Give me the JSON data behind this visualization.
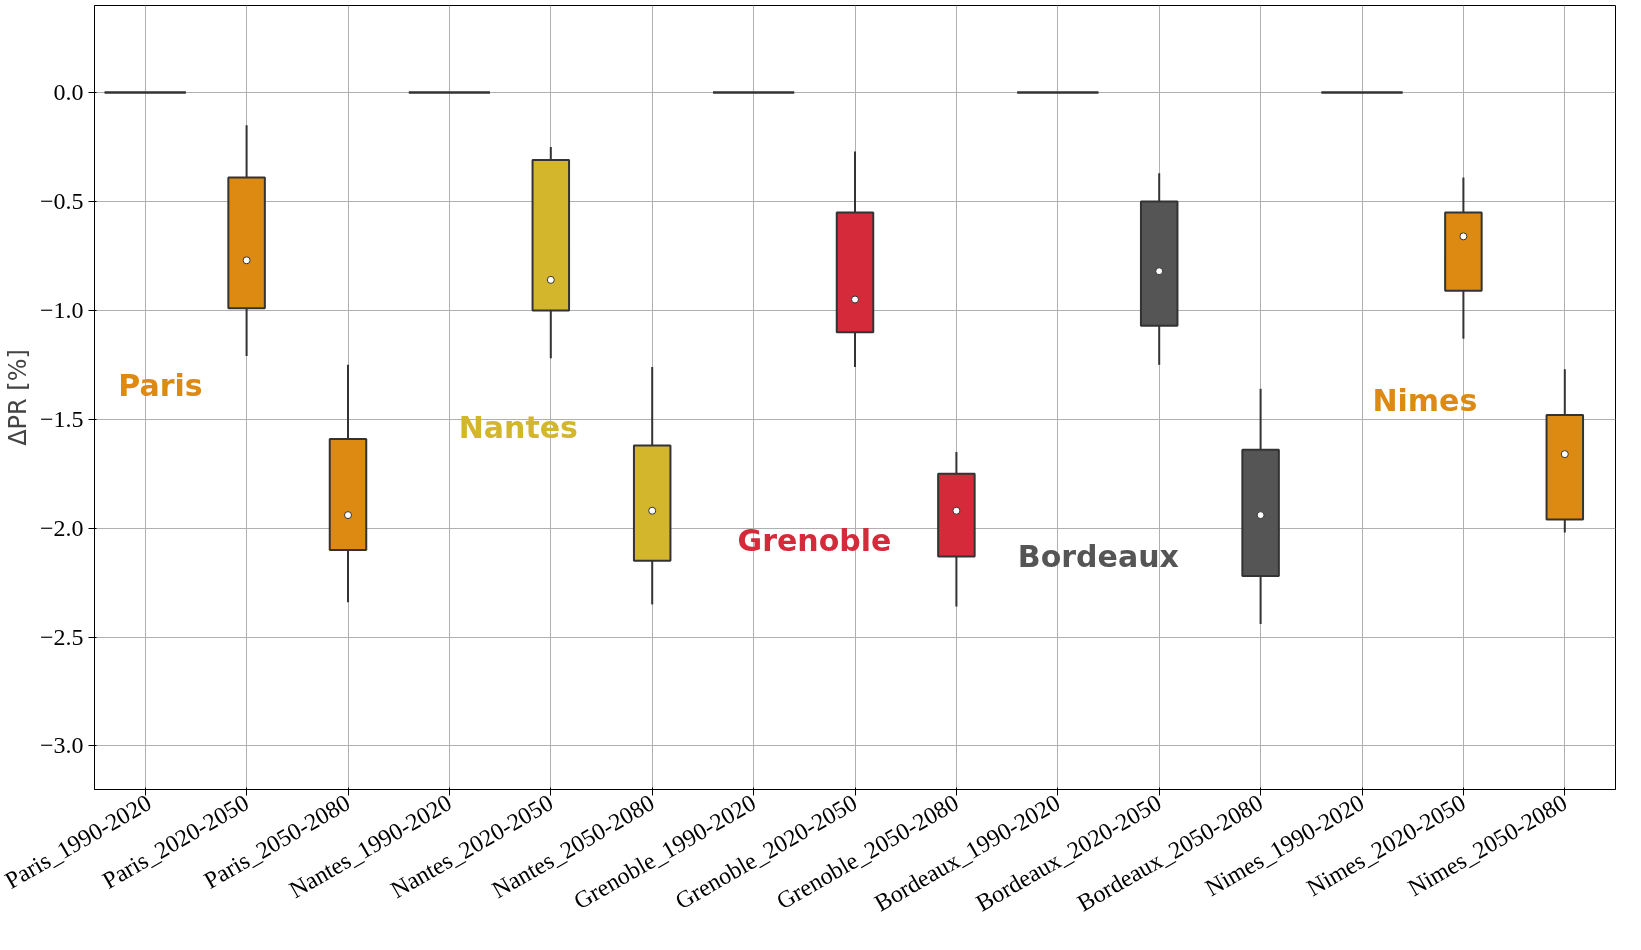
{
  "chart_data": {
    "type": "box",
    "ylabel": "ΔPR [%]",
    "categories": [
      "Paris_1990-2020",
      "Paris_2020-2050",
      "Paris_2050-2080",
      "Nantes_1990-2020",
      "Nantes_2020-2050",
      "Nantes_2050-2080",
      "Grenoble_1990-2020",
      "Grenoble_2020-2050",
      "Grenoble_2050-2080",
      "Bordeaux_1990-2020",
      "Bordeaux_2020-2050",
      "Bordeaux_2050-2080",
      "Nimes_1990-2020",
      "Nimes_2020-2050",
      "Nimes_2050-2080"
    ],
    "boxes": [
      {
        "low": 0,
        "q1": 0,
        "median": 0,
        "q3": 0,
        "high": 0
      },
      {
        "low": -1.21,
        "q1": -0.99,
        "median": -0.77,
        "q3": -0.39,
        "high": -0.15
      },
      {
        "low": -2.34,
        "q1": -2.1,
        "median": -1.94,
        "q3": -1.59,
        "high": -1.25
      },
      {
        "low": 0,
        "q1": 0,
        "median": 0,
        "q3": 0,
        "high": 0
      },
      {
        "low": -1.22,
        "q1": -1.0,
        "median": -0.86,
        "q3": -0.31,
        "high": -0.25
      },
      {
        "low": -2.35,
        "q1": -2.15,
        "median": -1.92,
        "q3": -1.62,
        "high": -1.26
      },
      {
        "low": 0,
        "q1": 0,
        "median": 0,
        "q3": 0,
        "high": 0
      },
      {
        "low": -1.26,
        "q1": -1.1,
        "median": -0.95,
        "q3": -0.55,
        "high": -0.27
      },
      {
        "low": -2.36,
        "q1": -2.13,
        "median": -1.92,
        "q3": -1.75,
        "high": -1.65
      },
      {
        "low": 0,
        "q1": 0,
        "median": 0,
        "q3": 0,
        "high": 0
      },
      {
        "low": -1.25,
        "q1": -1.07,
        "median": -0.82,
        "q3": -0.5,
        "high": -0.37
      },
      {
        "low": -2.44,
        "q1": -2.22,
        "median": -1.94,
        "q3": -1.64,
        "high": -1.36
      },
      {
        "low": 0,
        "q1": 0,
        "median": 0,
        "q3": 0,
        "high": 0
      },
      {
        "low": -1.13,
        "q1": -0.91,
        "median": -0.66,
        "q3": -0.55,
        "high": -0.39
      },
      {
        "low": -2.02,
        "q1": -1.96,
        "median": -1.66,
        "q3": -1.48,
        "high": -1.27
      }
    ],
    "colors": [
      "#333333",
      "#dd8a12",
      "#dd8a12",
      "#333333",
      "#d4b62c",
      "#d4b62c",
      "#333333",
      "#d42a3a",
      "#d42a3a",
      "#333333",
      "#555555",
      "#555555",
      "#333333",
      "#dd8a12",
      "#dd8a12"
    ],
    "annotations": [
      "Paris",
      "Nantes",
      "Grenoble",
      "Bordeaux",
      "Nimes"
    ],
    "ylim": [
      -3.2,
      0.4
    ],
    "yticks": [
      {
        "value": 0,
        "label": "0.0"
      },
      {
        "value": -0.5,
        "label": "−0.5"
      },
      {
        "value": -1.0,
        "label": "−1.0"
      },
      {
        "value": -1.5,
        "label": "−1.5"
      },
      {
        "value": -2.0,
        "label": "−2.0"
      },
      {
        "value": -2.5,
        "label": "−2.5"
      },
      {
        "value": -3.0,
        "label": "−3.0"
      }
    ],
    "grid": true
  }
}
